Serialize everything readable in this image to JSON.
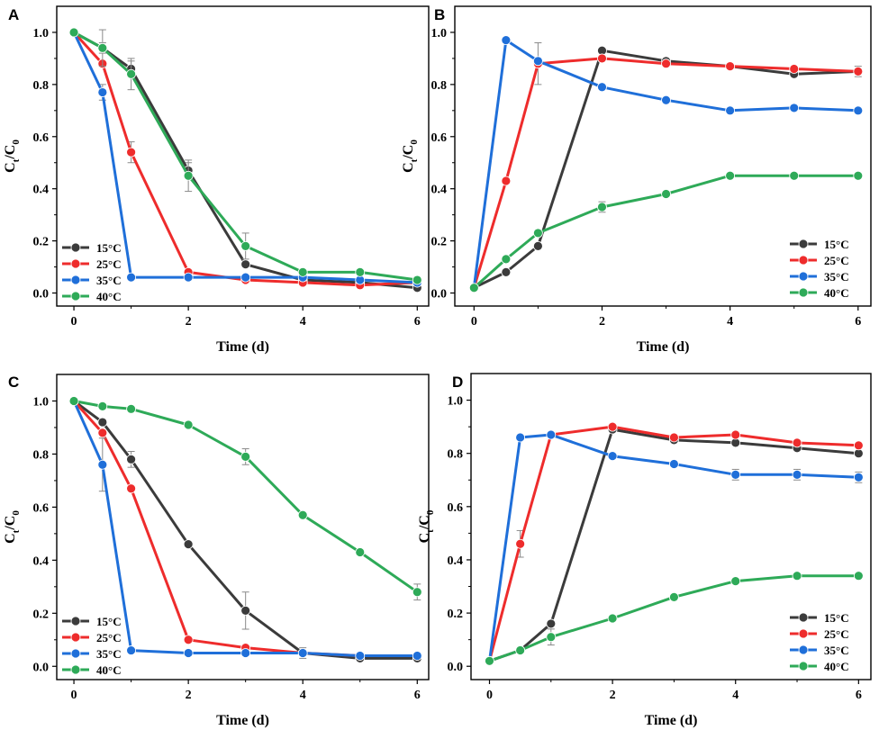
{
  "colors": {
    "15°C": "#3b3b3b",
    "25°C": "#ee2c2c",
    "35°C": "#1f6fd9",
    "40°C": "#2eaa58"
  },
  "chart_data": [
    {
      "panel": "A",
      "type": "line",
      "xlabel": "Time (d)",
      "ylabel": "Ct/C0",
      "xlim": [
        -0.3,
        6.2
      ],
      "ylim": [
        -0.05,
        1.1
      ],
      "xticks": [
        0,
        2,
        4,
        6
      ],
      "yticks": [
        0.0,
        0.2,
        0.4,
        0.6,
        0.8,
        1.0
      ],
      "legend_position": "bottom-left",
      "x": [
        0,
        0.5,
        1,
        2,
        3,
        4,
        5,
        6
      ],
      "series": [
        {
          "name": "15°C",
          "values": [
            1.0,
            0.94,
            0.86,
            0.47,
            0.11,
            0.05,
            0.04,
            0.02
          ],
          "errors": [
            0,
            0.02,
            0.03,
            0.03,
            0,
            0,
            0,
            0
          ]
        },
        {
          "name": "25°C",
          "values": [
            1.0,
            0.88,
            0.54,
            0.08,
            0.05,
            0.04,
            0.03,
            0.04
          ],
          "errors": [
            0,
            0,
            0.04,
            0,
            0,
            0,
            0,
            0
          ]
        },
        {
          "name": "35°C",
          "values": [
            1.0,
            0.77,
            0.06,
            0.06,
            0.06,
            0.06,
            0.05,
            0.04
          ],
          "errors": [
            0,
            0.03,
            0,
            0,
            0,
            0,
            0,
            0
          ]
        },
        {
          "name": "40°C",
          "values": [
            1.0,
            0.94,
            0.84,
            0.45,
            0.18,
            0.08,
            0.08,
            0.05
          ],
          "errors": [
            0,
            0.07,
            0.06,
            0.06,
            0.05,
            0,
            0,
            0
          ]
        }
      ]
    },
    {
      "panel": "B",
      "type": "line",
      "xlabel": "Time (d)",
      "ylabel": "Ct/C0",
      "xlim": [
        -0.3,
        6.2
      ],
      "ylim": [
        -0.05,
        1.1
      ],
      "xticks": [
        0,
        2,
        4,
        6
      ],
      "yticks": [
        0.0,
        0.2,
        0.4,
        0.6,
        0.8,
        1.0
      ],
      "legend_position": "bottom-right",
      "x": [
        0,
        0.5,
        1,
        2,
        3,
        4,
        5,
        6
      ],
      "series": [
        {
          "name": "15°C",
          "values": [
            0.02,
            0.08,
            0.18,
            0.93,
            0.89,
            0.87,
            0.84,
            0.85
          ],
          "errors": [
            0,
            0,
            0,
            0,
            0,
            0,
            0,
            0
          ]
        },
        {
          "name": "25°C",
          "values": [
            0.02,
            0.43,
            0.88,
            0.9,
            0.88,
            0.87,
            0.86,
            0.85
          ],
          "errors": [
            0,
            0,
            0.08,
            0,
            0,
            0,
            0,
            0.02
          ]
        },
        {
          "name": "35°C",
          "values": [
            0.02,
            0.97,
            0.89,
            0.79,
            0.74,
            0.7,
            0.71,
            0.7
          ],
          "errors": [
            0,
            0,
            0,
            0,
            0,
            0,
            0,
            0
          ]
        },
        {
          "name": "40°C",
          "values": [
            0.02,
            0.13,
            0.23,
            0.33,
            0.38,
            0.45,
            0.45,
            0.45
          ],
          "errors": [
            0,
            0,
            0,
            0.02,
            0,
            0,
            0,
            0
          ]
        }
      ]
    },
    {
      "panel": "C",
      "type": "line",
      "xlabel": "Time (d)",
      "ylabel": "Ct/C0",
      "xlim": [
        -0.3,
        6.2
      ],
      "ylim": [
        -0.05,
        1.1
      ],
      "xticks": [
        0,
        2,
        4,
        6
      ],
      "yticks": [
        0.0,
        0.2,
        0.4,
        0.6,
        0.8,
        1.0
      ],
      "legend_position": "bottom-left",
      "x": [
        0,
        0.5,
        1,
        2,
        3,
        4,
        5,
        6
      ],
      "series": [
        {
          "name": "15°C",
          "values": [
            1.0,
            0.92,
            0.78,
            0.46,
            0.21,
            0.05,
            0.03,
            0.03
          ],
          "errors": [
            0,
            0,
            0.03,
            0,
            0.07,
            0,
            0,
            0
          ]
        },
        {
          "name": "25°C",
          "values": [
            1.0,
            0.88,
            0.67,
            0.1,
            0.07,
            0.05,
            0.04,
            0.04
          ],
          "errors": [
            0,
            0,
            0,
            0,
            0,
            0,
            0,
            0
          ]
        },
        {
          "name": "35°C",
          "values": [
            1.0,
            0.76,
            0.06,
            0.05,
            0.05,
            0.05,
            0.04,
            0.04
          ],
          "errors": [
            0,
            0.1,
            0,
            0,
            0,
            0.02,
            0,
            0
          ]
        },
        {
          "name": "40°C",
          "values": [
            1.0,
            0.98,
            0.97,
            0.91,
            0.79,
            0.57,
            0.43,
            0.28
          ],
          "errors": [
            0,
            0,
            0,
            0,
            0.03,
            0,
            0,
            0.03
          ]
        }
      ]
    },
    {
      "panel": "D",
      "type": "line",
      "xlabel": "Time (d)",
      "ylabel": "Ct/C0",
      "xlim": [
        -0.3,
        6.2
      ],
      "ylim": [
        -0.05,
        1.1
      ],
      "xticks": [
        0,
        2,
        4,
        6
      ],
      "yticks": [
        0.0,
        0.2,
        0.4,
        0.6,
        0.8,
        1.0
      ],
      "legend_position": "bottom-right",
      "x": [
        0,
        0.5,
        1,
        2,
        3,
        4,
        5,
        6
      ],
      "series": [
        {
          "name": "15°C",
          "values": [
            0.02,
            0.06,
            0.16,
            0.89,
            0.85,
            0.84,
            0.82,
            0.8
          ],
          "errors": [
            0,
            0,
            0,
            0,
            0,
            0,
            0,
            0
          ]
        },
        {
          "name": "25°C",
          "values": [
            0.02,
            0.46,
            0.87,
            0.9,
            0.86,
            0.87,
            0.84,
            0.83
          ],
          "errors": [
            0,
            0.05,
            0,
            0,
            0,
            0,
            0,
            0
          ]
        },
        {
          "name": "35°C",
          "values": [
            0.02,
            0.86,
            0.87,
            0.79,
            0.76,
            0.72,
            0.72,
            0.71
          ],
          "errors": [
            0,
            0,
            0,
            0,
            0,
            0.02,
            0.02,
            0.02
          ]
        },
        {
          "name": "40°C",
          "values": [
            0.02,
            0.06,
            0.11,
            0.18,
            0.26,
            0.32,
            0.34,
            0.34
          ],
          "errors": [
            0,
            0,
            0.03,
            0,
            0,
            0,
            0,
            0
          ]
        }
      ]
    }
  ]
}
